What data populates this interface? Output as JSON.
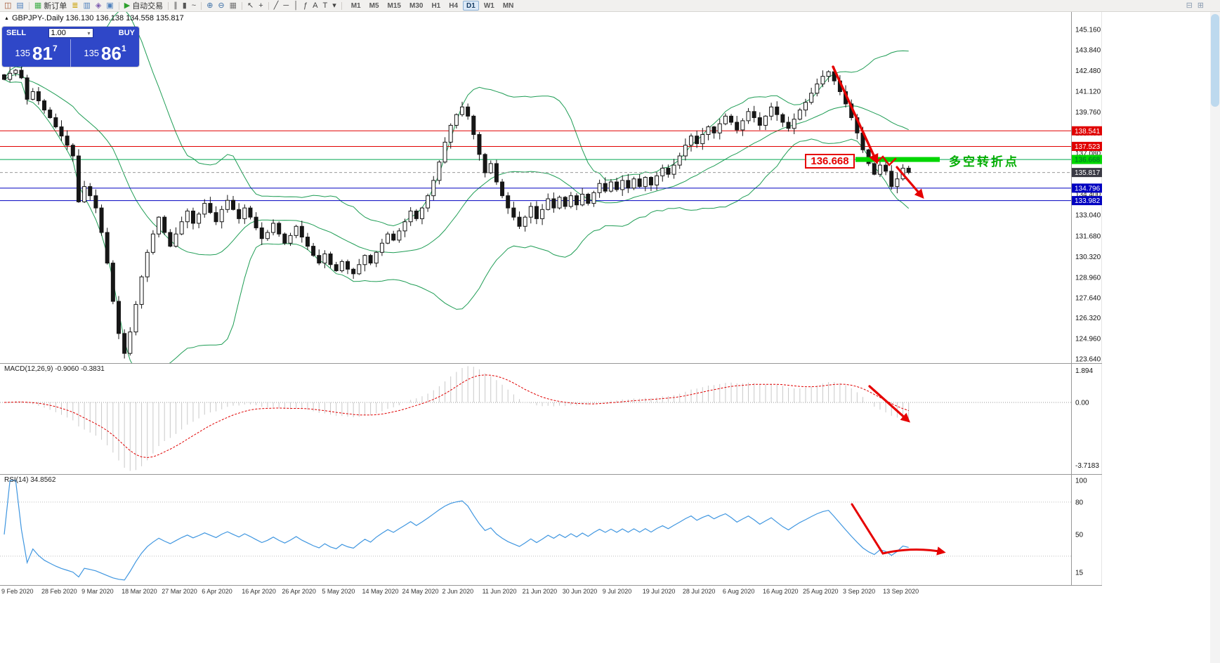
{
  "toolbar": {
    "buttons": [
      {
        "name": "new-chart-icon",
        "glyph": "◫",
        "color": "#a0522d"
      },
      {
        "name": "chart-profiles-icon",
        "glyph": "▤",
        "color": "#4f81bd"
      },
      {
        "name": "sep"
      },
      {
        "name": "new-order-button",
        "glyph": "▦",
        "glyph_color": "#3fae49",
        "label": "新订单"
      },
      {
        "name": "market-watch-icon",
        "glyph": "≣",
        "color": "#caa002"
      },
      {
        "name": "data-window-icon",
        "glyph": "▥",
        "color": "#4f81bd"
      },
      {
        "name": "navigator-icon",
        "glyph": "◈",
        "color": "#7d5bb0"
      },
      {
        "name": "terminal-icon",
        "glyph": "▣",
        "color": "#4f81bd"
      },
      {
        "name": "sep"
      },
      {
        "name": "auto-trading-button",
        "glyph": "▶",
        "glyph_color": "#2ea12e",
        "label": "自动交易"
      },
      {
        "name": "sep"
      },
      {
        "name": "bar-chart-icon",
        "glyph": "∥",
        "color": "#555555"
      },
      {
        "name": "candlestick-chart-icon",
        "glyph": "▮",
        "color": "#555555"
      },
      {
        "name": "line-chart-icon",
        "glyph": "~",
        "color": "#555555"
      },
      {
        "name": "sep"
      },
      {
        "name": "zoom-in-icon",
        "glyph": "⊕",
        "color": "#3b6ea5"
      },
      {
        "name": "zoom-out-icon",
        "glyph": "⊖",
        "color": "#3b6ea5"
      },
      {
        "name": "tile-windows-icon",
        "glyph": "▦",
        "color": "#777777"
      },
      {
        "name": "sep"
      },
      {
        "name": "cursor-icon",
        "glyph": "↖",
        "color": "#444444"
      },
      {
        "name": "crosshair-icon",
        "glyph": "+",
        "color": "#444444"
      },
      {
        "name": "sep"
      },
      {
        "name": "trendline-icon",
        "glyph": "╱",
        "color": "#444444"
      },
      {
        "name": "horizontal-line-icon",
        "glyph": "─",
        "color": "#444444"
      },
      {
        "name": "vertical-line-icon",
        "glyph": "│",
        "color": "#444444"
      },
      {
        "name": "fibonacci-icon",
        "glyph": "ƒ",
        "color": "#444444"
      },
      {
        "name": "text-icon",
        "glyph": "A",
        "color": "#444444"
      },
      {
        "name": "text-label-icon",
        "glyph": "T",
        "color": "#444444"
      },
      {
        "name": "arrows-dropdown-icon",
        "glyph": "▾",
        "color": "#444444"
      },
      {
        "name": "sep"
      }
    ],
    "timeframes": [
      {
        "label": "M1"
      },
      {
        "label": "M5"
      },
      {
        "label": "M15"
      },
      {
        "label": "M30"
      },
      {
        "label": "H1"
      },
      {
        "label": "H4"
      },
      {
        "label": "D1",
        "active": true
      },
      {
        "label": "W1"
      },
      {
        "label": "MN"
      }
    ],
    "right_buttons": [
      {
        "name": "dock-window-icon",
        "glyph": "⊟",
        "color": "#8a9bb0"
      },
      {
        "name": "new-window-icon",
        "glyph": "⊞",
        "color": "#8a9bb0"
      }
    ]
  },
  "chart": {
    "collapse_icon": "▲",
    "header_text": "GBPJPY-.Daily 136.130 136.138 134.558 135.817"
  },
  "trade_panel": {
    "sell_label": "SELL",
    "buy_label": "BUY",
    "volume": "1.00",
    "volume_caret": "▾",
    "sell": {
      "small": "135",
      "big": "81",
      "sup": "7"
    },
    "buy": {
      "small": "135",
      "big": "86",
      "sup": "1"
    }
  },
  "annotations": {
    "support_price_label": "136.668",
    "turning_point_text": "多空转折点",
    "arrow_color": "#e60000",
    "highlight_color": "#00d600"
  },
  "chart_data": {
    "type": "candlestick",
    "symbol": "GBPJPY-",
    "period": "Daily",
    "current_bar": {
      "open": 136.13,
      "high": 136.138,
      "low": 134.558,
      "close": 135.817
    },
    "ylim": [
      123.37,
      146.31
    ],
    "closes": [
      141.9,
      142.3,
      142.5,
      142.0,
      140.6,
      141.1,
      140.5,
      139.9,
      139.4,
      138.8,
      138.2,
      137.6,
      136.9,
      133.9,
      134.9,
      134.3,
      133.5,
      131.9,
      129.9,
      127.4,
      125.3,
      124.0,
      125.4,
      127.2,
      129.0,
      130.6,
      131.8,
      132.9,
      131.9,
      131.0,
      131.8,
      132.6,
      133.3,
      132.5,
      133.1,
      133.8,
      133.2,
      132.6,
      133.4,
      134.0,
      133.4,
      132.8,
      133.5,
      132.9,
      132.2,
      131.5,
      131.9,
      132.5,
      131.8,
      131.2,
      131.7,
      132.3,
      131.6,
      131.0,
      130.4,
      129.9,
      130.5,
      129.8,
      129.4,
      130.0,
      129.5,
      129.2,
      129.8,
      130.4,
      129.9,
      130.6,
      131.2,
      131.8,
      131.4,
      132.0,
      132.6,
      133.3,
      132.8,
      133.5,
      134.3,
      135.3,
      136.5,
      137.8,
      138.9,
      139.6,
      140.1,
      139.5,
      138.3,
      137.0,
      135.8,
      136.4,
      135.2,
      134.3,
      133.5,
      132.9,
      132.3,
      132.9,
      133.6,
      132.8,
      133.4,
      134.1,
      133.5,
      134.2,
      133.6,
      134.3,
      133.7,
      134.4,
      133.8,
      134.5,
      135.1,
      134.6,
      135.2,
      134.7,
      135.3,
      134.8,
      135.4,
      134.9,
      135.5,
      135.0,
      135.6,
      136.1,
      135.7,
      136.3,
      136.9,
      137.6,
      138.2,
      137.7,
      138.3,
      138.8,
      138.4,
      139.0,
      139.5,
      139.1,
      138.6,
      139.2,
      139.8,
      139.4,
      138.9,
      139.5,
      140.1,
      139.6,
      139.1,
      138.7,
      139.3,
      139.9,
      140.4,
      141.0,
      141.6,
      142.1,
      142.4,
      141.8,
      141.1,
      140.3,
      139.4,
      138.4,
      137.3,
      136.4,
      135.7,
      136.3,
      135.9,
      134.9,
      135.4,
      136.1,
      135.817
    ],
    "price_axis_labels": [
      "145.160",
      "143.840",
      "142.480",
      "141.120",
      "139.760",
      "138.400",
      "137.080",
      "135.720",
      "134.400",
      "133.040",
      "131.680",
      "130.320",
      "128.960",
      "127.640",
      "126.320",
      "124.960",
      "123.640"
    ],
    "date_labels": [
      "9 Feb 2020",
      "28 Feb 2020",
      "9 Mar 2020",
      "18 Mar 2020",
      "27 Mar 2020",
      "6 Apr 2020",
      "16 Apr 2020",
      "26 Apr 2020",
      "5 May 2020",
      "14 May 2020",
      "24 May 2020",
      "2 Jun 2020",
      "11 Jun 2020",
      "21 Jun 2020",
      "30 Jun 2020",
      "9 Jul 2020",
      "19 Jul 2020",
      "28 Jul 2020",
      "6 Aug 2020",
      "16 Aug 2020",
      "25 Aug 2020",
      "3 Sep 2020",
      "13 Sep 2020"
    ],
    "horizontal_levels": [
      {
        "price": 138.541,
        "label": "138.541",
        "color": "#e00000",
        "badge_bg": "#e00000",
        "badge_fg": "#ffffff",
        "style": "solid",
        "user_line": true
      },
      {
        "price": 137.523,
        "label": "137.523",
        "color": "#e00000",
        "badge_bg": "#e00000",
        "badge_fg": "#ffffff",
        "style": "solid",
        "user_line": true
      },
      {
        "price": 136.668,
        "label": "136.668",
        "color": "#00a651",
        "badge_bg": "#00d600",
        "badge_fg": "#006633",
        "style": "solid",
        "user_line": true
      },
      {
        "price": 135.817,
        "label": "135.817",
        "color": "#9a9a9a",
        "badge_bg": "#3a3a44",
        "badge_fg": "#ffffff",
        "style": "dash",
        "user_line": false
      },
      {
        "price": 134.796,
        "label": "134.796",
        "color": "#0000c0",
        "badge_bg": "#0000c0",
        "badge_fg": "#ffffff",
        "style": "solid",
        "user_line": true
      },
      {
        "price": 133.982,
        "label": "133.982",
        "color": "#0000c0",
        "badge_bg": "#0000c0",
        "badge_fg": "#ffffff",
        "style": "solid",
        "user_line": true
      }
    ],
    "indicators": {
      "bollinger_bands": {
        "period": 20,
        "deviations": 2,
        "color": "#1f9d55"
      },
      "macd": {
        "label": "MACD(12,26,9) -0.9060 -0.3831",
        "fast": 12,
        "slow": 26,
        "signal_period": 9,
        "value": -0.906,
        "signal_value": -0.3831,
        "axis_labels": [
          "1.894",
          "0.00",
          "-3.7183"
        ],
        "histogram_color": "#c9c9c9",
        "signal_color": "#e00000"
      },
      "rsi": {
        "label": "RSI(14) 34.8562",
        "period": 14,
        "value": 34.8562,
        "axis_labels": [
          "100",
          "80",
          "50",
          "15"
        ],
        "line_color": "#3f96e0"
      }
    }
  }
}
